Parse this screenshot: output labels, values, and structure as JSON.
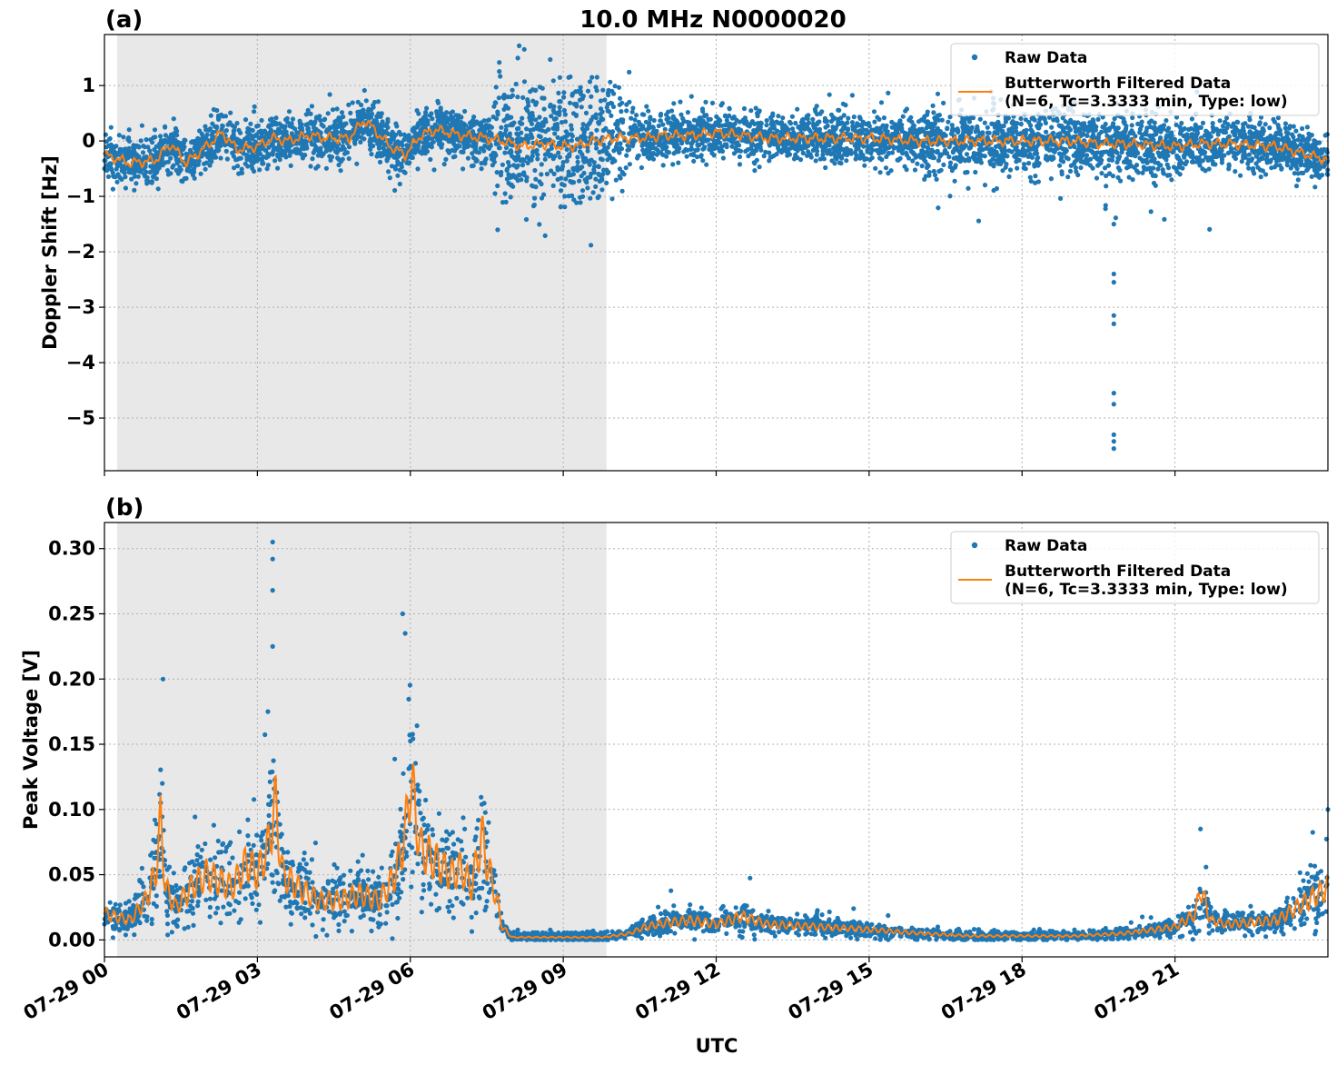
{
  "figure": {
    "title": "10.0 MHz N0000020",
    "xlabel": "UTC",
    "x_ticks": [
      "07-29 00",
      "07-29 03",
      "07-29 06",
      "07-29 09",
      "07-29 12",
      "07-29 15",
      "07-29 18",
      "07-29 21"
    ],
    "colors": {
      "raw": "#1f77b4",
      "filtered": "#ff7f0e",
      "shade": "#e8e8e8",
      "grid": "#b0b0b0"
    }
  },
  "chart_data": [
    {
      "type": "scatter",
      "panel_label": "(a)",
      "ylabel": "Doppler Shift [Hz]",
      "x_unit": "hours since 07-29 00 UTC",
      "xlim": [
        0,
        24
      ],
      "ylim": [
        -5.95,
        1.92
      ],
      "yticks": [
        1,
        0,
        -1,
        -2,
        -3,
        -4,
        -5
      ],
      "ytick_labels": [
        "1",
        "0",
        "−1",
        "−2",
        "−3",
        "−4",
        "−5"
      ],
      "grid": true,
      "legend_position": "upper-right",
      "shaded_region": [
        0.25,
        9.85
      ],
      "series": [
        {
          "name": "Raw Data",
          "kind": "points",
          "color": "#1f77b4"
        },
        {
          "name": "Butterworth Filtered Data",
          "name_line2": "(N=6, Tc=3.3333 min, Type: low)",
          "kind": "line",
          "color": "#ff7f0e",
          "x": [
            0,
            0.5,
            1,
            1.3,
            1.6,
            2,
            2.3,
            2.6,
            3,
            3.3,
            3.6,
            4,
            4.4,
            4.8,
            5.1,
            5.3,
            5.6,
            5.9,
            6.2,
            6.5,
            7,
            7.5,
            7.8,
            8.2,
            8.6,
            9,
            9.3,
            9.6,
            10,
            10.5,
            11,
            11.5,
            12,
            12.5,
            13,
            14,
            15,
            16,
            17,
            18,
            19,
            19.5,
            20,
            21,
            21.5,
            22,
            23,
            24
          ],
          "y": [
            -0.25,
            -0.4,
            -0.35,
            -0.05,
            -0.4,
            -0.1,
            0.15,
            -0.15,
            -0.1,
            0.05,
            0.0,
            0.1,
            0.05,
            0.05,
            0.38,
            0.2,
            -0.1,
            -0.25,
            0.1,
            0.2,
            0.1,
            0.05,
            0.0,
            -0.1,
            -0.05,
            -0.1,
            -0.08,
            0.0,
            0.05,
            0.05,
            0.1,
            0.1,
            0.15,
            0.1,
            0.05,
            0.05,
            0.05,
            0.0,
            0.0,
            0.0,
            0.0,
            -0.05,
            -0.05,
            -0.1,
            -0.05,
            -0.05,
            -0.1,
            -0.35
          ]
        }
      ]
    },
    {
      "type": "scatter",
      "panel_label": "(b)",
      "ylabel": "Peak Voltage [V]",
      "x_unit": "hours since 07-29 00 UTC",
      "xlim": [
        0,
        24
      ],
      "ylim": [
        -0.013,
        0.32
      ],
      "yticks": [
        0.3,
        0.25,
        0.2,
        0.15,
        0.1,
        0.05,
        0.0
      ],
      "ytick_labels": [
        "0.30",
        "0.25",
        "0.20",
        "0.15",
        "0.10",
        "0.05",
        "0.00"
      ],
      "grid": true,
      "legend_position": "upper-right",
      "shaded_region": [
        0.25,
        9.85
      ],
      "series": [
        {
          "name": "Raw Data",
          "kind": "points",
          "color": "#1f77b4"
        },
        {
          "name": "Butterworth Filtered Data",
          "name_line2": "(N=6, Tc=3.3333 min, Type: low)",
          "kind": "line",
          "color": "#ff7f0e",
          "x": [
            0,
            0.5,
            0.8,
            1.0,
            1.1,
            1.2,
            1.4,
            1.7,
            2.0,
            2.5,
            2.8,
            3.0,
            3.2,
            3.35,
            3.5,
            3.8,
            4.2,
            4.6,
            5.0,
            5.4,
            5.7,
            5.9,
            6.0,
            6.2,
            6.5,
            6.8,
            7.0,
            7.2,
            7.4,
            7.5,
            7.7,
            7.8,
            8.0,
            8.5,
            9,
            9.8,
            10.3,
            10.6,
            11,
            11.5,
            12,
            12.5,
            13,
            14,
            15,
            16,
            17,
            18,
            19,
            20,
            21,
            21.4,
            21.5,
            21.7,
            22,
            23,
            24
          ],
          "y": [
            0.02,
            0.015,
            0.03,
            0.05,
            0.09,
            0.04,
            0.025,
            0.04,
            0.05,
            0.04,
            0.06,
            0.05,
            0.07,
            0.105,
            0.05,
            0.04,
            0.03,
            0.03,
            0.035,
            0.03,
            0.05,
            0.08,
            0.125,
            0.07,
            0.06,
            0.05,
            0.055,
            0.04,
            0.08,
            0.06,
            0.03,
            0.01,
            0.002,
            0.002,
            0.002,
            0.002,
            0.005,
            0.01,
            0.013,
            0.015,
            0.012,
            0.018,
            0.012,
            0.01,
            0.008,
            0.005,
            0.003,
            0.003,
            0.003,
            0.005,
            0.01,
            0.02,
            0.04,
            0.015,
            0.012,
            0.015,
            0.04
          ]
        }
      ]
    }
  ]
}
